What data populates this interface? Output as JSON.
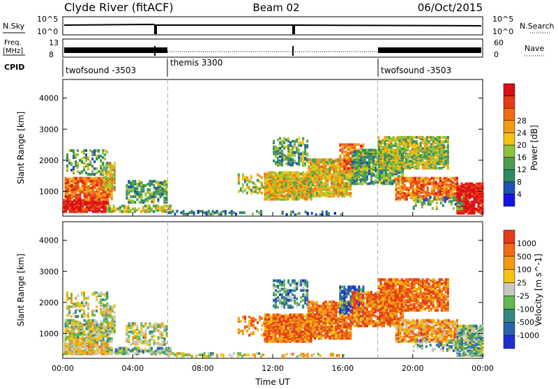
{
  "header": {
    "station": "Clyde River (fitACF)",
    "beam": "Beam 02",
    "date": "06/Oct/2015"
  },
  "strip": {
    "nsky_label": "N.Sky",
    "nsky_top": "10^5",
    "nsky_bottom": "10^0",
    "nsearch_label": "N.Search",
    "nsearch_top": "10^5",
    "nsearch_bottom": "10^0",
    "freq_label_1": "Freq.",
    "freq_label_2": "[MHz]",
    "freq_top": "13",
    "freq_bottom": "8",
    "nave_label": "Nave",
    "nave_top": "60",
    "nave_bottom": "0",
    "cpid_label": "CPID",
    "cpid_segments": [
      "twofsound -3503",
      "themis 3300",
      "twofsound -3503"
    ]
  },
  "chart_data": [
    {
      "type": "heatmap",
      "panel": "power",
      "ylabel": "Slant Range [km]",
      "xlabel": "",
      "y_ticks": [
        "1000",
        "2000",
        "3000",
        "4000"
      ],
      "ylim": [
        200,
        4600
      ],
      "colorbar_label": "Power [dB]",
      "colorbar_ticks": [
        "4",
        "8",
        "12",
        "16",
        "20",
        "24",
        "28"
      ],
      "colors": [
        "#1414e6",
        "#1f51b6",
        "#2d8a63",
        "#4f9a52",
        "#8dc33c",
        "#f2c311",
        "#f39a13",
        "#ef6b14",
        "#e43a17",
        "#d90e18"
      ]
    },
    {
      "type": "heatmap",
      "panel": "velocity",
      "ylabel": "Slant Range [km]",
      "xlabel": "Time UT",
      "x_ticks": [
        "00:00",
        "04:00",
        "08:00",
        "12:00",
        "16:00",
        "20:00",
        "00:00"
      ],
      "y_ticks": [
        "1000",
        "2000",
        "3000",
        "4000"
      ],
      "ylim": [
        200,
        4600
      ],
      "colorbar_label": "Velocity [m s^-1]",
      "colorbar_ticks": [
        "1000",
        "500",
        "100",
        "25",
        "-25",
        "-100",
        "-500",
        "-1000"
      ],
      "colors": [
        "#1e2fd0",
        "#2c63a8",
        "#36887d",
        "#62b84e",
        "#c8c8c0",
        "#f2c311",
        "#f39a13",
        "#ef6b14",
        "#e43a17"
      ]
    }
  ],
  "markers": {
    "dashed_hours": [
      6,
      18
    ]
  }
}
